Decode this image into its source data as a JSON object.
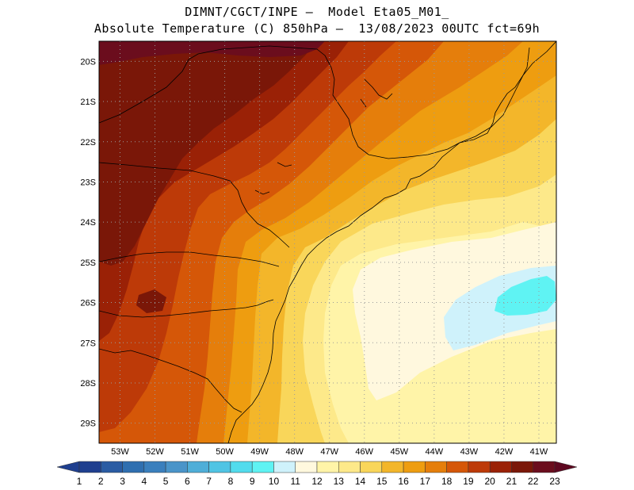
{
  "title": {
    "line1": "DIMNT/CGCT/INPE –  Model Eta05_M01_",
    "line2": "Absolute Temperature (C) 850hPa –  13/08/2023 00UTC fct=69h"
  },
  "map": {
    "lat_labels": [
      "20S",
      "21S",
      "22S",
      "23S",
      "24S",
      "25S",
      "26S",
      "27S",
      "28S",
      "29S"
    ],
    "lon_labels": [
      "53W",
      "52W",
      "51W",
      "50W",
      "49W",
      "48W",
      "47W",
      "46W",
      "45W",
      "44W",
      "43W",
      "42W",
      "41W"
    ],
    "lat_range": [
      -29.5,
      -19.5
    ],
    "lon_range": [
      -53.6,
      -40.5
    ]
  },
  "colorbar": {
    "labels": [
      "1",
      "2",
      "3",
      "4",
      "5",
      "6",
      "7",
      "8",
      "9",
      "10",
      "11",
      "12",
      "13",
      "14",
      "15",
      "16",
      "17",
      "18",
      "19",
      "20",
      "21",
      "22",
      "23"
    ],
    "colors": [
      "#1f3f8f",
      "#1f3f8f",
      "#2a5ca3",
      "#2f6fb0",
      "#3a7fbd",
      "#4a94c9",
      "#4faed8",
      "#50c4e4",
      "#52dced",
      "#5ff3f3",
      "#cff2fb",
      "#fff8de",
      "#fff4a8",
      "#fde98a",
      "#f9d65a",
      "#f3b62a",
      "#ee9d10",
      "#e57e0b",
      "#d55708",
      "#bd3a08",
      "#9a2106",
      "#7a1708",
      "#6b0d1d",
      "#5e0820"
    ]
  }
}
